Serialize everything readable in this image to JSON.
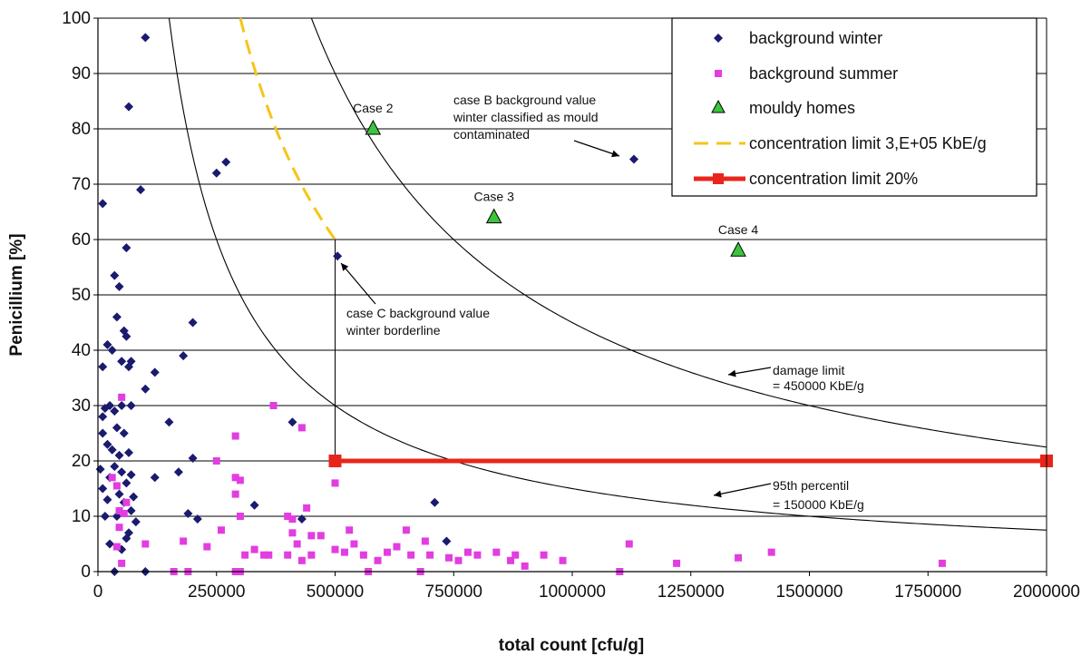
{
  "chart_data": {
    "type": "scatter",
    "xlabel": "total count [cfu/g]",
    "ylabel": "Penicillium [%]",
    "xlim": [
      0,
      2000000
    ],
    "ylim": [
      0,
      100
    ],
    "xticks": [
      "0",
      "250000",
      "500000",
      "750000",
      "1000000",
      "1250000",
      "1500000",
      "1750000",
      "2000000"
    ],
    "yticks": [
      "0",
      "10",
      "20",
      "30",
      "40",
      "50",
      "60",
      "70",
      "80",
      "90",
      "100"
    ],
    "grid": "horizontal",
    "legend_position": "top-right",
    "series": [
      {
        "name": "background winter",
        "marker": "diamond",
        "color": "#1a1a6e",
        "points": [
          [
            100000,
            96.5
          ],
          [
            65000,
            84
          ],
          [
            90000,
            69
          ],
          [
            270000,
            74
          ],
          [
            250000,
            72
          ],
          [
            10000,
            66.5
          ],
          [
            60000,
            58.5
          ],
          [
            35000,
            53.5
          ],
          [
            45000,
            51.5
          ],
          [
            505000,
            57
          ],
          [
            40000,
            46
          ],
          [
            55000,
            43.5
          ],
          [
            60000,
            42.5
          ],
          [
            20000,
            41
          ],
          [
            30000,
            40
          ],
          [
            70000,
            38
          ],
          [
            10000,
            37
          ],
          [
            50000,
            38
          ],
          [
            65000,
            37
          ],
          [
            100000,
            33
          ],
          [
            120000,
            36
          ],
          [
            180000,
            39
          ],
          [
            200000,
            45
          ],
          [
            25000,
            30
          ],
          [
            15000,
            29.5
          ],
          [
            35000,
            29
          ],
          [
            50000,
            30
          ],
          [
            70000,
            30
          ],
          [
            10000,
            28
          ],
          [
            40000,
            26
          ],
          [
            55000,
            25
          ],
          [
            150000,
            27
          ],
          [
            410000,
            27
          ],
          [
            20000,
            23
          ],
          [
            30000,
            22
          ],
          [
            45000,
            21
          ],
          [
            65000,
            21.5
          ],
          [
            10000,
            25
          ],
          [
            35000,
            19
          ],
          [
            50000,
            18
          ],
          [
            70000,
            17.5
          ],
          [
            5000,
            18.5
          ],
          [
            25000,
            17
          ],
          [
            60000,
            16
          ],
          [
            10000,
            15
          ],
          [
            45000,
            14
          ],
          [
            75000,
            13.5
          ],
          [
            120000,
            17
          ],
          [
            20000,
            13
          ],
          [
            55000,
            12.5
          ],
          [
            70000,
            11
          ],
          [
            15000,
            10
          ],
          [
            40000,
            10
          ],
          [
            80000,
            9
          ],
          [
            190000,
            10.5
          ],
          [
            210000,
            9.5
          ],
          [
            170000,
            18
          ],
          [
            200000,
            20.5
          ],
          [
            330000,
            12
          ],
          [
            430000,
            9.5
          ],
          [
            710000,
            12.5
          ],
          [
            1130000,
            74.5
          ],
          [
            25000,
            5
          ],
          [
            50000,
            4
          ],
          [
            60000,
            6
          ],
          [
            35000,
            0
          ],
          [
            100000,
            0
          ],
          [
            735000,
            5.5
          ],
          [
            65000,
            7
          ]
        ]
      },
      {
        "name": "background summer",
        "marker": "square",
        "color": "#e23de0",
        "points": [
          [
            50000,
            31.5
          ],
          [
            370000,
            30
          ],
          [
            430000,
            26
          ],
          [
            290000,
            24.5
          ],
          [
            250000,
            20
          ],
          [
            30000,
            17
          ],
          [
            40000,
            15.5
          ],
          [
            290000,
            17
          ],
          [
            300000,
            16.5
          ],
          [
            500000,
            16
          ],
          [
            60000,
            12.5
          ],
          [
            45000,
            11
          ],
          [
            55000,
            10.5
          ],
          [
            290000,
            14
          ],
          [
            440000,
            11.5
          ],
          [
            300000,
            10
          ],
          [
            400000,
            10
          ],
          [
            410000,
            9.5
          ],
          [
            45000,
            8
          ],
          [
            260000,
            7.5
          ],
          [
            350000,
            3
          ],
          [
            410000,
            7
          ],
          [
            450000,
            6.5
          ],
          [
            470000,
            6.5
          ],
          [
            530000,
            7.5
          ],
          [
            650000,
            7.5
          ],
          [
            40000,
            4.5
          ],
          [
            100000,
            5
          ],
          [
            180000,
            5.5
          ],
          [
            230000,
            4.5
          ],
          [
            310000,
            3
          ],
          [
            360000,
            3
          ],
          [
            400000,
            3
          ],
          [
            420000,
            5
          ],
          [
            450000,
            3
          ],
          [
            500000,
            4
          ],
          [
            520000,
            3.5
          ],
          [
            540000,
            5
          ],
          [
            560000,
            3
          ],
          [
            590000,
            2
          ],
          [
            610000,
            3.5
          ],
          [
            630000,
            4.5
          ],
          [
            660000,
            3
          ],
          [
            690000,
            5.5
          ],
          [
            700000,
            3
          ],
          [
            740000,
            2.5
          ],
          [
            780000,
            3.5
          ],
          [
            800000,
            3
          ],
          [
            840000,
            3.5
          ],
          [
            880000,
            3
          ],
          [
            940000,
            3
          ],
          [
            980000,
            2
          ],
          [
            1120000,
            5
          ],
          [
            1220000,
            1.5
          ],
          [
            1350000,
            2.5
          ],
          [
            1420000,
            3.5
          ],
          [
            1780000,
            1.5
          ],
          [
            50000,
            1.5
          ],
          [
            160000,
            0
          ],
          [
            190000,
            0
          ],
          [
            290000,
            0
          ],
          [
            300000,
            0
          ],
          [
            570000,
            0
          ],
          [
            680000,
            0
          ],
          [
            1100000,
            0
          ],
          [
            870000,
            2
          ],
          [
            900000,
            1
          ],
          [
            330000,
            4
          ],
          [
            760000,
            2
          ],
          [
            430000,
            2
          ]
        ]
      },
      {
        "name": "mouldy homes",
        "marker": "triangle",
        "color": "#3cc43c",
        "points": [
          [
            580000,
            80
          ],
          [
            835000,
            64
          ],
          [
            1350000,
            58
          ]
        ],
        "labels": [
          "Case 2",
          "Case 3",
          "Case 4"
        ]
      },
      {
        "name": "concentration limit 3,E+05 KbE/g",
        "type": "dashed-line",
        "color": "#f5c518",
        "constant": 300000,
        "x_range": [
          300000,
          500000
        ]
      },
      {
        "name": "concentration limit 20%",
        "type": "line",
        "color": "#e8251c",
        "points": [
          [
            500000,
            20
          ],
          [
            2000000,
            20
          ]
        ]
      }
    ],
    "reference_curves": [
      {
        "constant": 450000,
        "label_lines": [
          "damage limit",
          "= 450000 KbE/g"
        ]
      },
      {
        "constant": 150000,
        "label_lines": [
          "95th percentil",
          "= 150000 KbE/g"
        ]
      }
    ],
    "annotations": [
      {
        "lines": [
          "case B background value",
          "winter classified as mould",
          "contaminated"
        ]
      },
      {
        "lines": [
          "case C background value",
          "winter borderline"
        ]
      }
    ]
  }
}
